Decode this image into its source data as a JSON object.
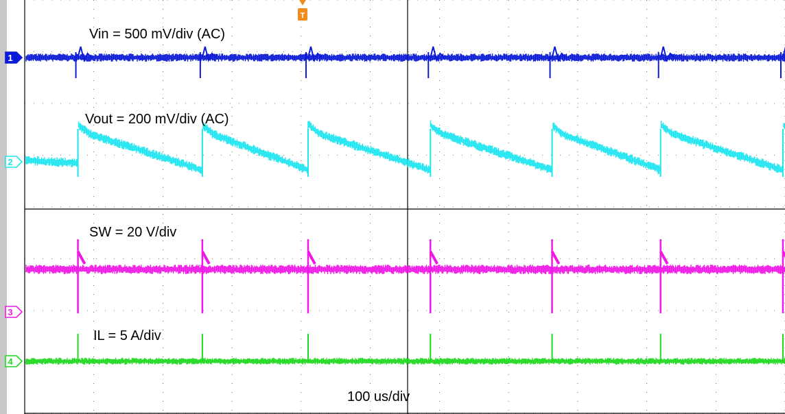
{
  "chart_data": {
    "type": "line",
    "title": "",
    "timebase": "100 us/div",
    "grid": true,
    "trigger_marker": "T",
    "channels": [
      {
        "id": "1",
        "label": "Vin = 500 mV/div (AC)",
        "color": "#0a1ad6",
        "coupling": "AC"
      },
      {
        "id": "2",
        "label": "Vout = 200 mV/div (AC)",
        "color": "#1fe5f0",
        "coupling": "AC"
      },
      {
        "id": "3",
        "label": "SW = 20 V/div",
        "color": "#f018e6",
        "coupling": "DC"
      },
      {
        "id": "4",
        "label": "IL = 5 A/div",
        "color": "#1fd81f",
        "coupling": "DC"
      }
    ],
    "switching_events_div": [
      0.77,
      2.57,
      4.1,
      5.87,
      7.63,
      9.2,
      10.97
    ],
    "x_range_div": [
      0,
      11
    ],
    "y_range_div": [
      0,
      6
    ]
  },
  "colors": {
    "left_bar": "#c8c8c8",
    "grid": "#000000",
    "trigger": "#f08c1e"
  }
}
